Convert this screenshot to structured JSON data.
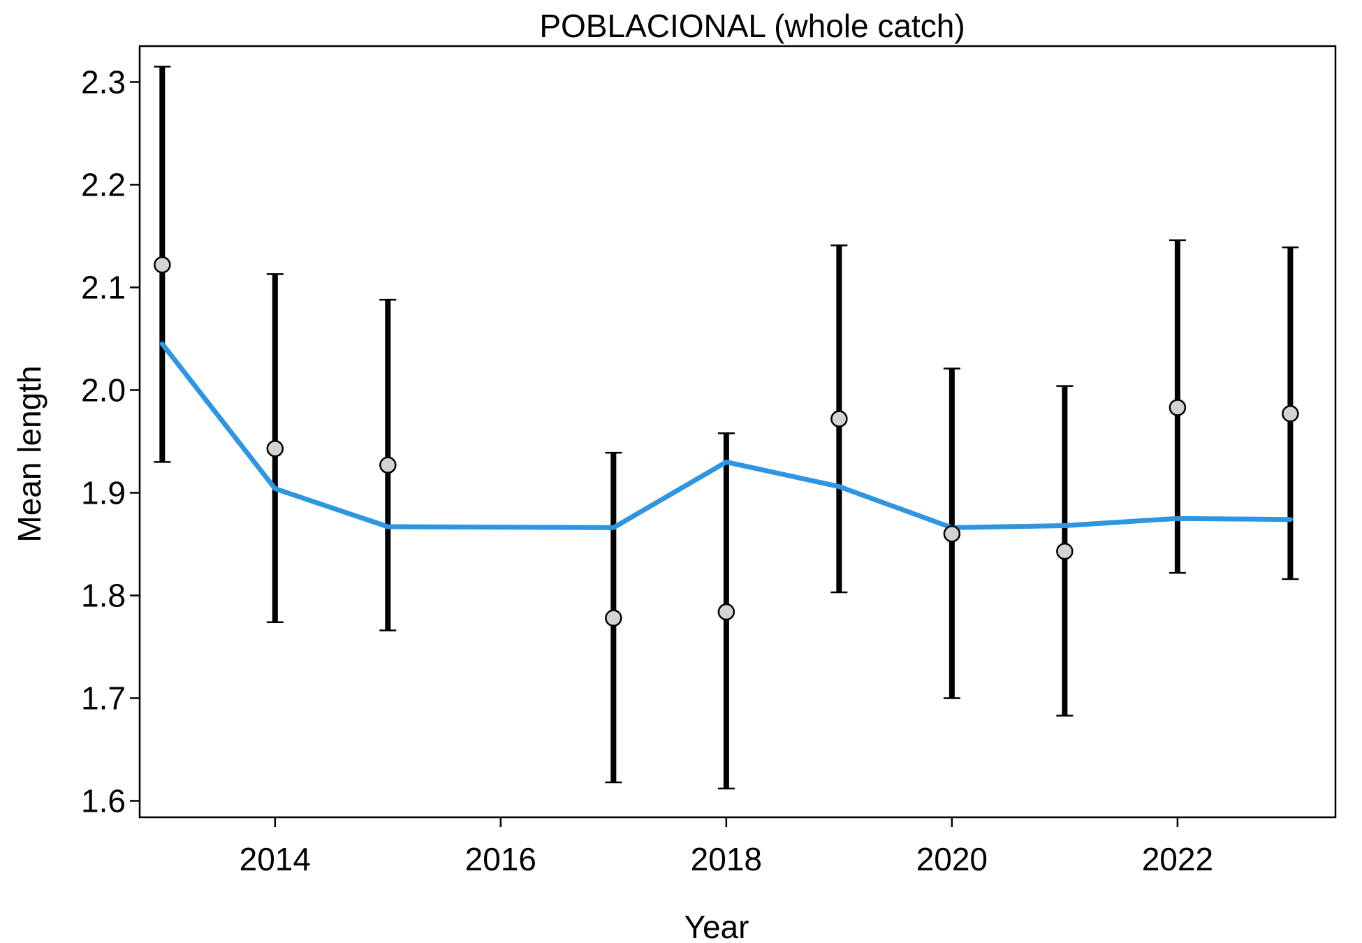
{
  "chart_data": {
    "type": "line",
    "title": "POBLACIONAL (whole catch)",
    "xlabel": "Year",
    "ylabel": "Mean length",
    "xlim": [
      2012.8,
      2023.4
    ],
    "ylim": [
      1.584,
      2.335
    ],
    "x_ticks": [
      2014,
      2016,
      2018,
      2020,
      2022
    ],
    "y_ticks": [
      1.6,
      1.7,
      1.8,
      1.9,
      2.0,
      2.1,
      2.2,
      2.3
    ],
    "x_tick_labels": [
      "2014",
      "2016",
      "2018",
      "2020",
      "2022"
    ],
    "y_tick_labels": [
      "1.6",
      "1.7",
      "1.8",
      "1.9",
      "2.0",
      "2.1",
      "2.2",
      "2.3"
    ],
    "grid": false,
    "legend": "none",
    "series": [
      {
        "kind": "points_with_error_bars",
        "color": "#d3d3d3",
        "x": [
          2013,
          2014,
          2015,
          2017,
          2018,
          2019,
          2020,
          2021,
          2022,
          2023
        ],
        "y": [
          2.122,
          1.943,
          1.927,
          1.778,
          1.784,
          1.972,
          1.86,
          1.843,
          1.983,
          1.977
        ],
        "lower": [
          1.93,
          1.774,
          1.766,
          1.618,
          1.612,
          1.803,
          1.7,
          1.683,
          1.822,
          1.816
        ],
        "upper": [
          2.315,
          2.113,
          2.088,
          1.939,
          1.958,
          2.141,
          2.021,
          2.004,
          2.146,
          2.139
        ]
      },
      {
        "kind": "line",
        "color": "#2e95e0",
        "x": [
          2013,
          2014,
          2015,
          2017,
          2018,
          2019,
          2020,
          2021,
          2022,
          2023
        ],
        "y": [
          2.045,
          1.904,
          1.867,
          1.866,
          1.93,
          1.906,
          1.866,
          1.868,
          1.875,
          1.874
        ]
      }
    ]
  }
}
